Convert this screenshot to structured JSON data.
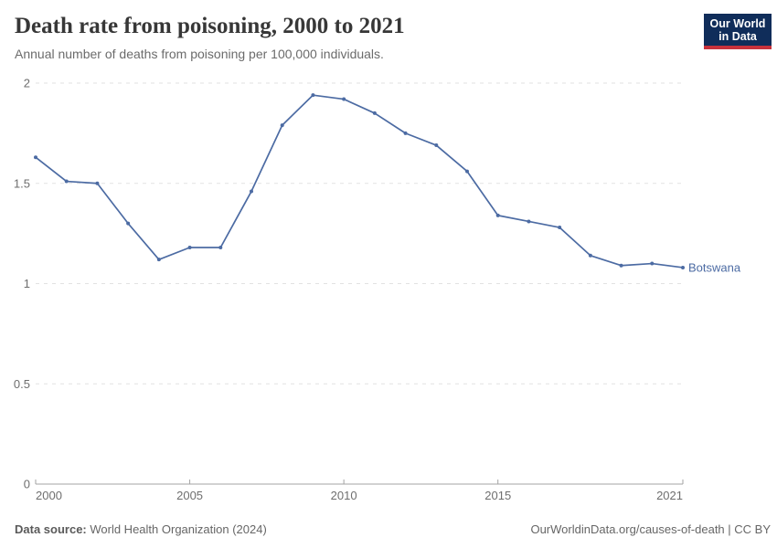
{
  "header": {
    "title": "Death rate from poisoning, 2000 to 2021",
    "subtitle": "Annual number of deaths from poisoning per 100,000 individuals.",
    "logo": {
      "line1": "Our World",
      "line2": "in Data"
    }
  },
  "chart_data": {
    "type": "line",
    "title": "Death rate from poisoning, 2000 to 2021",
    "subtitle": "Annual number of deaths from poisoning per 100,000 individuals.",
    "x": [
      2000,
      2001,
      2002,
      2003,
      2004,
      2005,
      2006,
      2007,
      2008,
      2009,
      2010,
      2011,
      2012,
      2013,
      2014,
      2015,
      2016,
      2017,
      2018,
      2019,
      2020,
      2021
    ],
    "series": [
      {
        "name": "Botswana",
        "color": "#4c6ba3",
        "values": [
          1.63,
          1.51,
          1.5,
          1.3,
          1.12,
          1.18,
          1.18,
          1.46,
          1.79,
          1.94,
          1.92,
          1.85,
          1.75,
          1.69,
          1.56,
          1.34,
          1.31,
          1.28,
          1.14,
          1.09,
          1.1,
          1.08
        ]
      }
    ],
    "xticks": [
      2000,
      2005,
      2010,
      2015,
      2021
    ],
    "yticks": [
      0,
      0.5,
      1,
      1.5,
      2
    ],
    "ylim": [
      0,
      2
    ],
    "xlabel": "",
    "ylabel": "",
    "grid": "horizontal-dashed",
    "legend": "end-of-line-label"
  },
  "colors": {
    "line": "#4c6ba3",
    "gridline": "#e2e2e2",
    "axis": "#a3a3a3",
    "tick_label": "#6e6e6e",
    "logo_navy": "#102d5a",
    "logo_red": "#c8323c"
  },
  "footer": {
    "source_label": "Data source:",
    "source_value": " World Health Organization (2024)",
    "credit": "OurWorldinData.org/causes-of-death | CC BY"
  }
}
